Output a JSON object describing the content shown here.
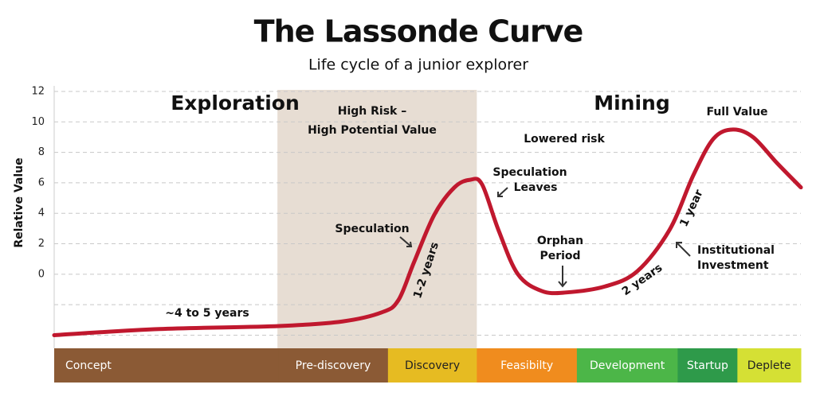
{
  "chart_data": {
    "type": "line",
    "title": "The Lassonde Curve",
    "subtitle": "Life cycle of a junior explorer",
    "y_label": "Relative Value",
    "ylim": [
      -5,
      12
    ],
    "yticks": [
      0,
      2,
      4,
      6,
      8,
      10,
      12
    ],
    "minor_grid": [
      -4,
      -2
    ],
    "grid": true,
    "xlim": [
      0,
      100
    ],
    "shaded_region": [
      29.9,
      56.6
    ],
    "shaded_color": "#e7ddd3",
    "series": [
      {
        "name": "Lassonde Curve",
        "color": "#c0182e",
        "x": [
          0,
          14.1,
          30.1,
          38.6,
          43.9,
          46.1,
          48.2,
          50.9,
          53.6,
          55.7,
          57.3,
          59.5,
          62.1,
          65.3,
          68.5,
          73.8,
          78.1,
          82.4,
          85.6,
          88.3,
          90.9,
          93.6,
          96.8,
          100
        ],
        "values": [
          -4.0,
          -3.6,
          -3.4,
          -3.1,
          -2.5,
          -1.7,
          0.8,
          3.9,
          5.7,
          6.2,
          5.9,
          2.9,
          0.0,
          -1.1,
          -1.2,
          -0.8,
          0.2,
          2.9,
          6.5,
          8.9,
          9.5,
          9.0,
          7.3,
          5.7
        ]
      }
    ],
    "stages": [
      {
        "label": "Concept",
        "start": 0,
        "end": 30,
        "color": "#8b5a35"
      },
      {
        "label": "Pre-discovery",
        "start": 30,
        "end": 44.7,
        "color": "#8b5a35"
      },
      {
        "label": "Discovery",
        "start": 44.7,
        "end": 56.6,
        "color": "#e6bb22"
      },
      {
        "label": "Feasibilty",
        "start": 56.6,
        "end": 70,
        "color": "#f08c1e"
      },
      {
        "label": "Development",
        "start": 70,
        "end": 83.5,
        "color": "#4cb648"
      },
      {
        "label": "Startup",
        "start": 83.5,
        "end": 91.5,
        "color": "#2e9a4a"
      },
      {
        "label": "Deplete",
        "start": 91.5,
        "end": 100,
        "color": "#d5e034"
      }
    ],
    "annotations": {
      "exploration": "Exploration",
      "mining": "Mining",
      "high_risk_1": "High Risk –",
      "high_risk_2": "High Potential Value",
      "lowered_risk": "Lowered risk",
      "full_value": "Full Value",
      "speculation": "Speculation",
      "speculation_leaves_1": "Speculation",
      "speculation_leaves_2": "Leaves",
      "orphan_1": "Orphan",
      "orphan_2": "Period",
      "institutional_1": "Institutional",
      "institutional_2": "Investment",
      "years_4_5": "~4 to 5 years",
      "years_1_2": "1-2 years",
      "years_2": "2 years",
      "year_1": "1 year"
    }
  }
}
